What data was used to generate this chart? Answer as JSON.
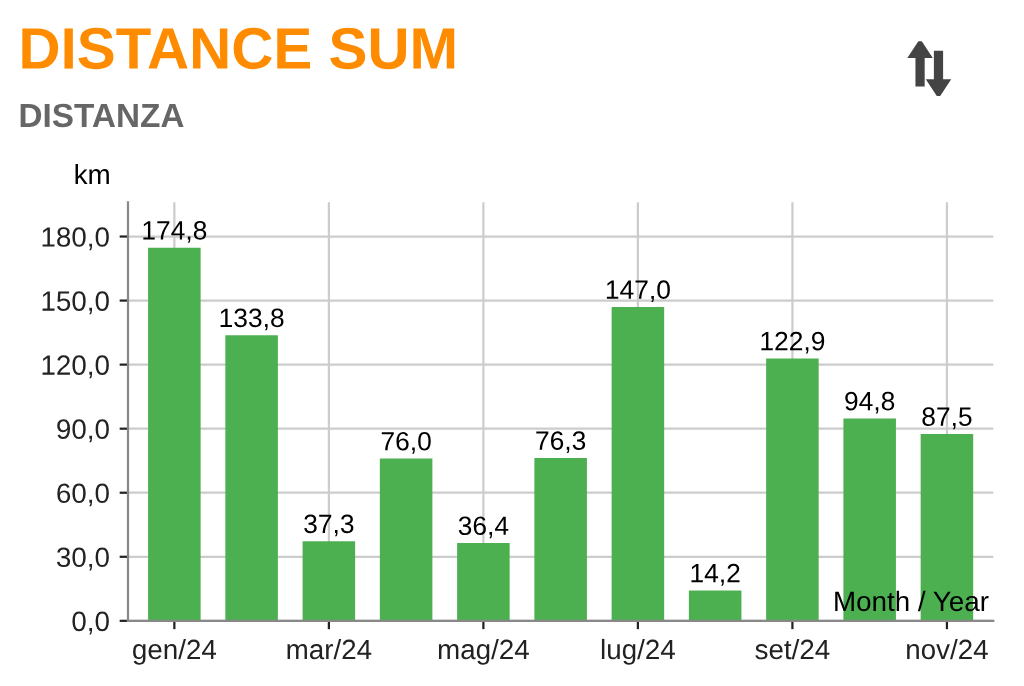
{
  "chart_data": {
    "type": "bar",
    "title": "DISTANCE SUM",
    "subtitle": "DISTANZA",
    "ylabel": "km",
    "xlabel": "Month / Year",
    "categories": [
      "gen/24",
      null,
      "mar/24",
      null,
      "mag/24",
      null,
      "lug/24",
      null,
      "set/24",
      null,
      "nov/24"
    ],
    "values": [
      174.8,
      133.8,
      37.3,
      76.0,
      36.4,
      76.3,
      147.0,
      14.2,
      122.9,
      94.8,
      87.5
    ],
    "value_labels": [
      "174,8",
      "133,8",
      "37,3",
      "76,0",
      "36,4",
      "76,3",
      "147,0",
      "14,2",
      "122,9",
      "94,8",
      "87,5"
    ],
    "color": "#4caf50",
    "ylim": [
      0,
      196
    ],
    "yticks": [
      {
        "value": 0,
        "label": "0,0"
      },
      {
        "value": 30,
        "label": "30,0"
      },
      {
        "value": 60,
        "label": "60,0"
      },
      {
        "value": 90,
        "label": "90,0"
      },
      {
        "value": 120,
        "label": "120,0"
      },
      {
        "value": 150,
        "label": "150,0"
      },
      {
        "value": 180,
        "label": "180,0"
      }
    ],
    "grid": true,
    "legend": false
  }
}
